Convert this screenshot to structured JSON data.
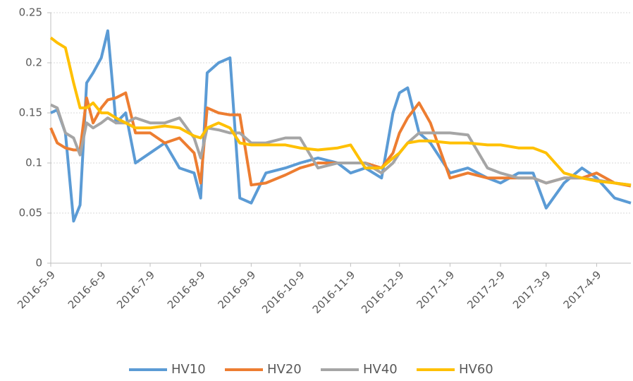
{
  "chart_data": {
    "type": "line",
    "x": [
      "2016-5-9",
      "2016-5-13",
      "2016-5-18",
      "2016-5-23",
      "2016-5-27",
      "2016-5-31",
      "2016-6-4",
      "2016-6-9",
      "2016-6-13",
      "2016-6-18",
      "2016-6-24",
      "2016-6-30",
      "2016-7-9",
      "2016-7-18",
      "2016-7-27",
      "2016-8-5",
      "2016-8-9",
      "2016-8-13",
      "2016-8-20",
      "2016-8-27",
      "2016-9-2",
      "2016-9-9",
      "2016-9-18",
      "2016-9-30",
      "2016-10-9",
      "2016-10-20",
      "2016-11-1",
      "2016-11-9",
      "2016-11-18",
      "2016-11-28",
      "2016-12-5",
      "2016-12-9",
      "2016-12-14",
      "2016-12-21",
      "2016-12-28",
      "2017-1-9",
      "2017-1-20",
      "2017-2-1",
      "2017-2-9",
      "2017-2-20",
      "2017-3-1",
      "2017-3-9",
      "2017-3-20",
      "2017-3-31",
      "2017-4-9",
      "2017-4-20",
      "2017-4-30"
    ],
    "series": [
      {
        "name": "HV10",
        "color": "#5b9bd5",
        "values": [
          0.15,
          0.153,
          0.13,
          0.042,
          0.058,
          0.18,
          0.19,
          0.205,
          0.232,
          0.14,
          0.15,
          0.1,
          0.11,
          0.12,
          0.095,
          0.09,
          0.065,
          0.19,
          0.2,
          0.205,
          0.065,
          0.06,
          0.09,
          0.095,
          0.1,
          0.105,
          0.1,
          0.09,
          0.095,
          0.085,
          0.15,
          0.17,
          0.175,
          0.13,
          0.12,
          0.09,
          0.095,
          0.085,
          0.08,
          0.09,
          0.09,
          0.055,
          0.08,
          0.095,
          0.085,
          0.065,
          0.06
        ]
      },
      {
        "name": "HV20",
        "color": "#ed7d31",
        "values": [
          0.135,
          0.12,
          0.115,
          0.113,
          0.113,
          0.165,
          0.14,
          0.155,
          0.163,
          0.165,
          0.17,
          0.13,
          0.13,
          0.12,
          0.125,
          0.11,
          0.08,
          0.155,
          0.15,
          0.148,
          0.148,
          0.078,
          0.08,
          0.088,
          0.095,
          0.1,
          0.1,
          0.1,
          0.1,
          0.095,
          0.11,
          0.13,
          0.145,
          0.16,
          0.14,
          0.085,
          0.09,
          0.085,
          0.085,
          0.085,
          0.085,
          0.08,
          0.085,
          0.085,
          0.09,
          0.08,
          0.077
        ]
      },
      {
        "name": "HV40",
        "color": "#a5a5a5",
        "values": [
          0.158,
          0.155,
          0.13,
          0.125,
          0.108,
          0.14,
          0.135,
          0.14,
          0.145,
          0.14,
          0.14,
          0.145,
          0.14,
          0.14,
          0.145,
          0.125,
          0.105,
          0.135,
          0.133,
          0.13,
          0.13,
          0.12,
          0.12,
          0.125,
          0.125,
          0.095,
          0.1,
          0.1,
          0.1,
          0.09,
          0.1,
          0.11,
          0.12,
          0.13,
          0.13,
          0.13,
          0.128,
          0.095,
          0.09,
          0.085,
          0.085,
          0.08,
          0.085,
          0.085,
          0.083,
          0.08,
          0.078
        ]
      },
      {
        "name": "HV60",
        "color": "#ffc000",
        "values": [
          0.225,
          0.22,
          0.215,
          0.18,
          0.155,
          0.155,
          0.16,
          0.15,
          0.15,
          0.145,
          0.14,
          0.135,
          0.135,
          0.137,
          0.135,
          0.127,
          0.125,
          0.135,
          0.14,
          0.135,
          0.12,
          0.118,
          0.118,
          0.118,
          0.115,
          0.113,
          0.115,
          0.118,
          0.095,
          0.095,
          0.105,
          0.11,
          0.12,
          0.122,
          0.122,
          0.12,
          0.12,
          0.118,
          0.118,
          0.115,
          0.115,
          0.11,
          0.09,
          0.085,
          0.082,
          0.08,
          0.078
        ]
      }
    ],
    "xlim": [
      "2016-5-9",
      "2017-4-30"
    ],
    "xticks": [
      "2016-5-9",
      "2016-6-9",
      "2016-7-9",
      "2016-8-9",
      "2016-9-9",
      "2016-10-9",
      "2016-11-9",
      "2016-12-9",
      "2017-1-9",
      "2017-2-9",
      "2017-3-9",
      "2017-4-9"
    ],
    "ylim": [
      0,
      0.25
    ],
    "yticks": [
      0,
      0.05,
      0.1,
      0.15,
      0.2,
      0.25
    ],
    "grid": true,
    "legend": "bottom"
  }
}
